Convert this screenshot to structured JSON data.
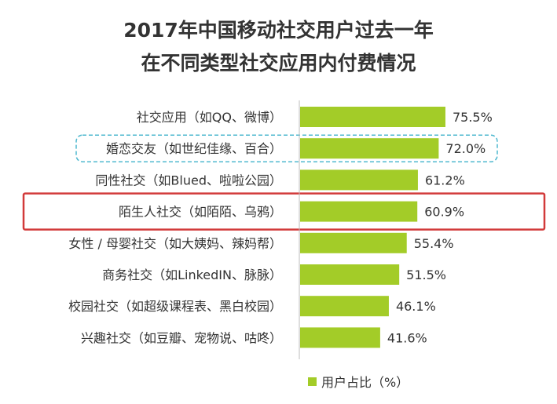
{
  "chart_data": {
    "type": "bar",
    "orientation": "horizontal",
    "title": "2017年中国移动社交用户过去一年",
    "subtitle": "在不同类型社交应用内付费情况",
    "categories": [
      "社交应用（如QQ、微博）",
      "婚恋交友（如世纪佳缘、百合）",
      "同性社交（如Blued、啦啦公园）",
      "陌生人社交（如陌陌、乌鸦）",
      "女性 / 母婴社交（如大姨妈、辣妈帮）",
      "商务社交（如LinkedIN、脉脉）",
      "校园社交（如超级课程表、黑白校园）",
      "兴趣社交（如豆瓣、宠物说、咕咚）"
    ],
    "values": [
      75.5,
      72.0,
      61.2,
      60.9,
      55.4,
      51.5,
      46.1,
      41.6
    ],
    "value_labels": [
      "75.5%",
      "72.0%",
      "61.2%",
      "60.9%",
      "55.4%",
      "51.5%",
      "46.1%",
      "41.6%"
    ],
    "xlim": [
      0,
      100
    ],
    "legend": {
      "label": "用户占比（%）",
      "position": "bottom-right"
    },
    "highlights": [
      {
        "category_index": 1,
        "style": "dashed",
        "color": "#4fb8cf"
      },
      {
        "category_index": 3,
        "style": "solid",
        "color": "#d23a3a"
      }
    ],
    "colors": {
      "bar": "#a3cc28",
      "axis": "#bdbdbd",
      "text": "#333333"
    },
    "grid": false
  }
}
